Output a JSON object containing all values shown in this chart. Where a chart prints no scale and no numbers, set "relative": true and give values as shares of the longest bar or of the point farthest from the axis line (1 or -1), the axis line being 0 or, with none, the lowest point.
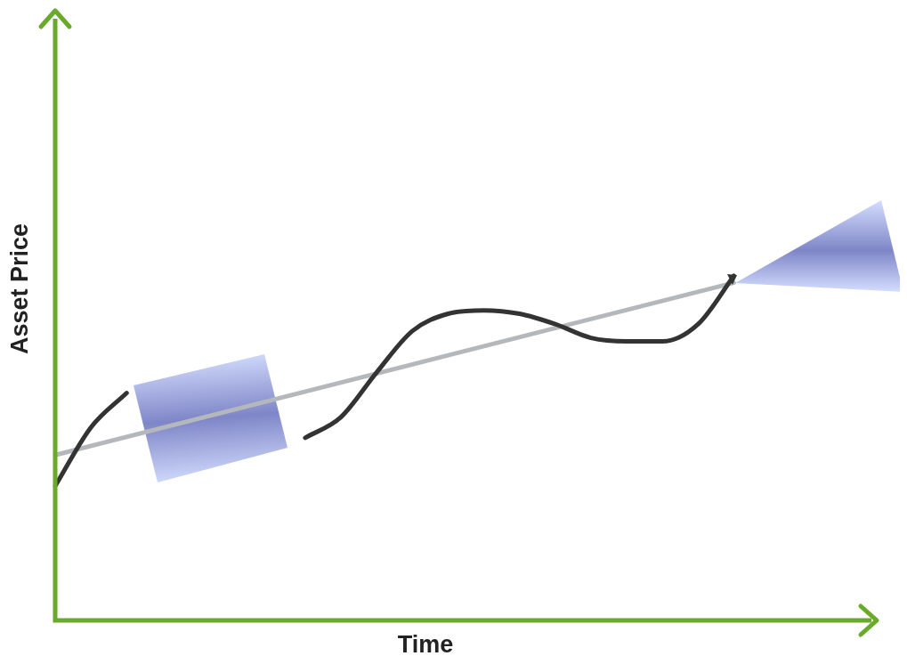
{
  "chart_data": {
    "type": "line",
    "xlabel": "Time",
    "ylabel": "Asset Price",
    "relative": true,
    "marker": "none",
    "categories": [
      null,
      null,
      null,
      null,
      null,
      null,
      null,
      null,
      null,
      null,
      null,
      null,
      null,
      null,
      null,
      null,
      null,
      null,
      null,
      null,
      null,
      null,
      null,
      null
    ],
    "series": [
      {
        "color": "#333333",
        "values": [
          0.39,
          0.56,
          0.66,
          null,
          null,
          null,
          null,
          0.53,
          0.59,
          0.72,
          0.84,
          0.89,
          0.9,
          0.89,
          0.86,
          0.82,
          0.81,
          0.81,
          0.86,
          1,
          null,
          null,
          null,
          null
        ]
      },
      {
        "color": "#b4b8bc",
        "values": [
          0.48,
          null,
          null,
          null,
          null,
          null,
          null,
          null,
          null,
          null,
          null,
          null,
          null,
          null,
          null,
          null,
          null,
          null,
          null,
          0.98,
          null,
          null,
          null,
          null
        ]
      }
    ]
  }
}
